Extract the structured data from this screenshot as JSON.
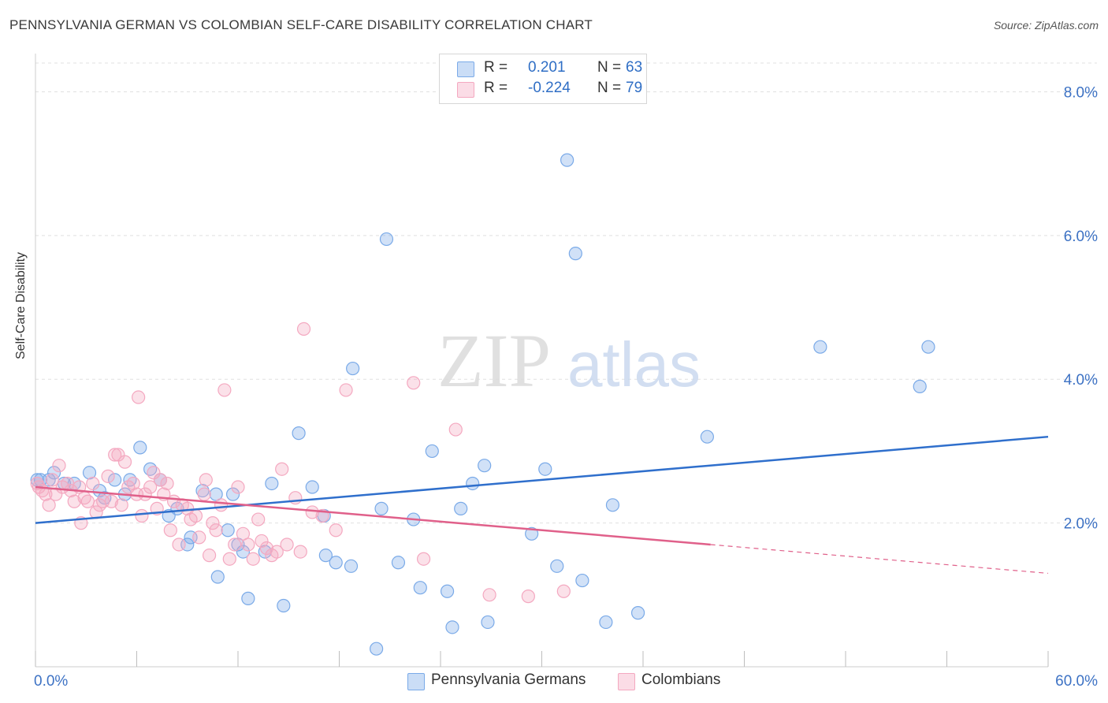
{
  "title": "PENNSYLVANIA GERMAN VS COLOMBIAN SELF-CARE DISABILITY CORRELATION CHART",
  "source": "Source: ZipAtlas.com",
  "watermark": {
    "zip": "ZIP",
    "atlas": "atlas"
  },
  "legend_top": {
    "rows": [
      {
        "r_label": "R =",
        "r_value": "0.201",
        "n_label": "N =",
        "n_value": "63",
        "color": "#7aaae8"
      },
      {
        "r_label": "R =",
        "r_value": "-0.224",
        "n_label": "N =",
        "n_value": "79",
        "color": "#f4a8c0"
      }
    ]
  },
  "legend_bottom": [
    {
      "label": "Pennsylvania Germans",
      "color": "#7aaae8"
    },
    {
      "label": "Colombians",
      "color": "#f4a8c0"
    }
  ],
  "chart_data": {
    "type": "scatter",
    "title": "PENNSYLVANIA GERMAN VS COLOMBIAN SELF-CARE DISABILITY CORRELATION CHART",
    "xlabel": "",
    "ylabel": "Self-Care Disability",
    "xlim": [
      0,
      60
    ],
    "ylim": [
      0,
      8.4
    ],
    "x_tick_labels": [
      "0.0%",
      "60.0%"
    ],
    "y_ticks": [
      2,
      4,
      6,
      8
    ],
    "y_tick_labels": [
      "2.0%",
      "4.0%",
      "6.0%",
      "8.0%"
    ],
    "grid": "horizontal dashed",
    "legend_position": "top-center and bottom",
    "series": [
      {
        "name": "Pennsylvania Germans",
        "color": "#7aaae8",
        "line_color": "#2f6fcc",
        "trend": {
          "x": [
            0,
            60
          ],
          "y": [
            2.0,
            3.2
          ]
        },
        "points": [
          [
            0.3,
            2.6
          ],
          [
            0.8,
            2.6
          ],
          [
            1.1,
            2.7
          ],
          [
            1.7,
            2.55
          ],
          [
            2.3,
            2.55
          ],
          [
            3.2,
            2.7
          ],
          [
            3.8,
            2.45
          ],
          [
            4.1,
            2.35
          ],
          [
            4.7,
            2.6
          ],
          [
            5.3,
            2.4
          ],
          [
            5.6,
            2.6
          ],
          [
            6.2,
            3.05
          ],
          [
            6.8,
            2.75
          ],
          [
            7.4,
            2.6
          ],
          [
            7.9,
            2.1
          ],
          [
            8.4,
            2.2
          ],
          [
            9.0,
            1.7
          ],
          [
            9.2,
            1.8
          ],
          [
            9.9,
            2.45
          ],
          [
            10.7,
            2.4
          ],
          [
            10.8,
            1.25
          ],
          [
            11.4,
            1.9
          ],
          [
            11.7,
            2.4
          ],
          [
            12.0,
            1.7
          ],
          [
            12.3,
            1.6
          ],
          [
            12.6,
            0.95
          ],
          [
            13.6,
            1.6
          ],
          [
            14.0,
            2.55
          ],
          [
            14.7,
            0.85
          ],
          [
            15.6,
            3.25
          ],
          [
            16.4,
            2.5
          ],
          [
            17.1,
            2.1
          ],
          [
            17.2,
            1.55
          ],
          [
            17.8,
            1.45
          ],
          [
            18.7,
            1.4
          ],
          [
            18.8,
            4.15
          ],
          [
            20.2,
            0.25
          ],
          [
            20.5,
            2.2
          ],
          [
            20.8,
            5.95
          ],
          [
            21.5,
            1.45
          ],
          [
            22.4,
            2.05
          ],
          [
            22.8,
            1.1
          ],
          [
            23.5,
            3.0
          ],
          [
            24.4,
            1.05
          ],
          [
            24.7,
            0.55
          ],
          [
            25.2,
            2.2
          ],
          [
            25.9,
            2.55
          ],
          [
            26.6,
            2.8
          ],
          [
            26.8,
            0.62
          ],
          [
            29.4,
            1.85
          ],
          [
            30.2,
            2.75
          ],
          [
            30.9,
            1.4
          ],
          [
            31.5,
            7.05
          ],
          [
            32.0,
            5.75
          ],
          [
            32.4,
            1.2
          ],
          [
            33.8,
            0.62
          ],
          [
            34.2,
            2.25
          ],
          [
            35.7,
            0.75
          ],
          [
            39.8,
            3.2
          ],
          [
            46.5,
            4.45
          ],
          [
            52.4,
            3.9
          ],
          [
            52.9,
            4.45
          ],
          [
            0.1,
            2.6
          ]
        ]
      },
      {
        "name": "Colombians",
        "color": "#f4a8c0",
        "line_color": "#e0608a",
        "trend": {
          "x": [
            0,
            40
          ],
          "y": [
            2.5,
            1.7
          ],
          "dashed_to": {
            "x": 60,
            "y": 1.3
          }
        },
        "points": [
          [
            0.2,
            2.5
          ],
          [
            0.4,
            2.45
          ],
          [
            0.6,
            2.4
          ],
          [
            0.8,
            2.25
          ],
          [
            1.0,
            2.6
          ],
          [
            1.2,
            2.4
          ],
          [
            1.4,
            2.8
          ],
          [
            1.6,
            2.5
          ],
          [
            1.9,
            2.55
          ],
          [
            2.1,
            2.45
          ],
          [
            2.3,
            2.3
          ],
          [
            2.6,
            2.5
          ],
          [
            2.7,
            2.0
          ],
          [
            2.9,
            2.35
          ],
          [
            3.1,
            2.3
          ],
          [
            3.4,
            2.55
          ],
          [
            3.6,
            2.15
          ],
          [
            3.8,
            2.25
          ],
          [
            4.0,
            2.3
          ],
          [
            4.3,
            2.65
          ],
          [
            4.5,
            2.3
          ],
          [
            4.7,
            2.95
          ],
          [
            4.9,
            2.95
          ],
          [
            5.1,
            2.25
          ],
          [
            5.3,
            2.85
          ],
          [
            5.5,
            2.5
          ],
          [
            5.8,
            2.55
          ],
          [
            6.0,
            2.4
          ],
          [
            6.1,
            3.75
          ],
          [
            6.3,
            2.1
          ],
          [
            6.5,
            2.4
          ],
          [
            6.8,
            2.5
          ],
          [
            7.0,
            2.7
          ],
          [
            7.2,
            2.2
          ],
          [
            7.4,
            2.6
          ],
          [
            7.6,
            2.4
          ],
          [
            7.8,
            2.55
          ],
          [
            8.0,
            1.9
          ],
          [
            8.2,
            2.3
          ],
          [
            8.5,
            1.7
          ],
          [
            8.7,
            2.25
          ],
          [
            9.0,
            2.2
          ],
          [
            9.2,
            2.05
          ],
          [
            9.5,
            2.1
          ],
          [
            9.7,
            1.8
          ],
          [
            10.0,
            2.4
          ],
          [
            10.3,
            1.55
          ],
          [
            10.5,
            2.0
          ],
          [
            10.7,
            1.9
          ],
          [
            11.0,
            2.25
          ],
          [
            11.2,
            3.85
          ],
          [
            11.5,
            1.5
          ],
          [
            11.8,
            1.7
          ],
          [
            12.0,
            2.5
          ],
          [
            12.3,
            1.85
          ],
          [
            12.6,
            1.7
          ],
          [
            12.9,
            1.5
          ],
          [
            13.2,
            2.05
          ],
          [
            13.4,
            1.75
          ],
          [
            13.7,
            1.65
          ],
          [
            14.0,
            1.55
          ],
          [
            14.3,
            1.6
          ],
          [
            14.6,
            2.75
          ],
          [
            14.9,
            1.7
          ],
          [
            15.4,
            2.35
          ],
          [
            15.7,
            1.6
          ],
          [
            15.9,
            4.7
          ],
          [
            16.4,
            2.15
          ],
          [
            17.0,
            2.1
          ],
          [
            17.8,
            1.9
          ],
          [
            18.4,
            3.85
          ],
          [
            22.4,
            3.95
          ],
          [
            23.0,
            1.5
          ],
          [
            24.9,
            3.3
          ],
          [
            26.9,
            1.0
          ],
          [
            29.2,
            0.98
          ],
          [
            31.3,
            1.05
          ],
          [
            0.1,
            2.55
          ],
          [
            10.1,
            2.6
          ]
        ]
      }
    ]
  }
}
